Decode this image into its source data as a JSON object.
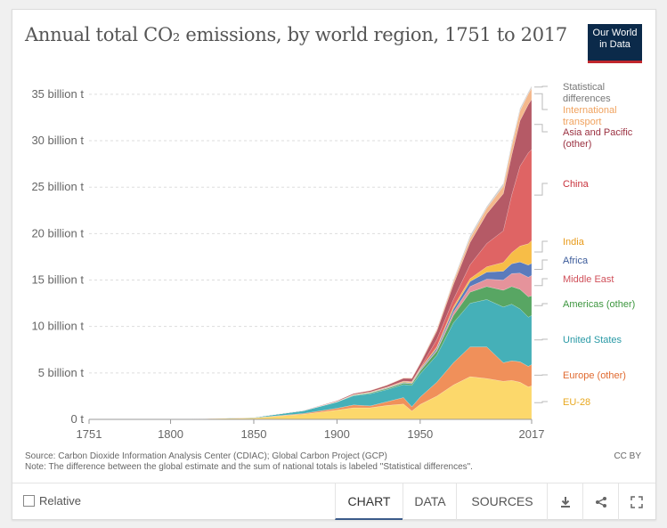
{
  "header": {
    "title": "Annual total CO₂ emissions, by world region, 1751 to 2017",
    "logo_line1": "Our World",
    "logo_line2": "in Data"
  },
  "footer": {
    "source": "Source: Carbon Dioxide Information Analysis Center (CDIAC); Global Carbon Project (GCP)",
    "note": "Note: The difference between the global estimate and the sum of national totals is labeled \"Statistical differences\".",
    "license": "CC BY",
    "relative_label": "Relative",
    "tabs": [
      "CHART",
      "DATA",
      "SOURCES"
    ],
    "icons": [
      "download-icon",
      "share-icon",
      "fullscreen-icon"
    ]
  },
  "chart_data": {
    "type": "area",
    "stacked": true,
    "title": "Annual total CO₂ emissions, by world region, 1751 to 2017",
    "x_ticks": [
      "1751",
      "1800",
      "1850",
      "1900",
      "1950",
      "2017"
    ],
    "y_ticks": [
      "0 t",
      "5 billion t",
      "10 billion t",
      "15 billion t",
      "20 billion t",
      "25 billion t",
      "30 billion t",
      "35 billion t"
    ],
    "xlim": [
      1751,
      2017
    ],
    "ylim": [
      0,
      37
    ],
    "y_unit": "billion t",
    "grid": "horizontal dashed",
    "x": [
      1751,
      1800,
      1850,
      1880,
      1900,
      1910,
      1920,
      1930,
      1940,
      1945,
      1950,
      1960,
      1970,
      1980,
      1990,
      2000,
      2005,
      2010,
      2015,
      2017
    ],
    "series": [
      {
        "name": "EU-28",
        "color": "#fcd86b",
        "label_color": "#e8a820",
        "values": [
          0.01,
          0.03,
          0.15,
          0.55,
          1.0,
          1.25,
          1.25,
          1.5,
          1.65,
          0.9,
          1.6,
          2.5,
          3.7,
          4.6,
          4.4,
          4.1,
          4.2,
          4.0,
          3.5,
          3.6
        ]
      },
      {
        "name": "Europe (other)",
        "color": "#f0905a",
        "label_color": "#e06a30",
        "values": [
          0.0,
          0.0,
          0.02,
          0.08,
          0.2,
          0.3,
          0.2,
          0.4,
          0.7,
          0.45,
          0.8,
          1.5,
          2.4,
          3.2,
          3.4,
          2.0,
          2.1,
          2.2,
          2.2,
          2.3
        ]
      },
      {
        "name": "United States",
        "color": "#45b0b8",
        "label_color": "#2a9aa6",
        "values": [
          0.0,
          0.0,
          0.05,
          0.3,
          0.66,
          1.0,
          1.3,
          1.3,
          1.4,
          2.3,
          2.5,
          2.9,
          4.3,
          4.7,
          5.1,
          6.0,
          6.1,
          5.7,
          5.3,
          5.3
        ]
      },
      {
        "name": "Americas (other)",
        "color": "#58a663",
        "label_color": "#3c963e",
        "values": [
          0.0,
          0.0,
          0.0,
          0.01,
          0.03,
          0.06,
          0.1,
          0.12,
          0.15,
          0.17,
          0.3,
          0.45,
          0.8,
          1.2,
          1.4,
          1.8,
          1.9,
          2.1,
          2.2,
          2.1
        ]
      },
      {
        "name": "Middle East",
        "color": "#e5939b",
        "label_color": "#d0505a",
        "values": [
          0.0,
          0.0,
          0.0,
          0.0,
          0.0,
          0.0,
          0.01,
          0.02,
          0.03,
          0.04,
          0.06,
          0.12,
          0.35,
          0.6,
          0.8,
          1.1,
          1.4,
          1.75,
          2.1,
          2.2
        ]
      },
      {
        "name": "Africa",
        "color": "#5a7bbc",
        "label_color": "#3b5b9a",
        "values": [
          0.0,
          0.0,
          0.0,
          0.0,
          0.01,
          0.02,
          0.03,
          0.05,
          0.06,
          0.07,
          0.1,
          0.2,
          0.35,
          0.55,
          0.75,
          0.95,
          1.05,
          1.2,
          1.3,
          1.3
        ]
      },
      {
        "name": "India",
        "color": "#f7bd47",
        "label_color": "#e89a18",
        "values": [
          0.0,
          0.0,
          0.0,
          0.01,
          0.03,
          0.04,
          0.05,
          0.06,
          0.08,
          0.09,
          0.09,
          0.14,
          0.22,
          0.3,
          0.58,
          0.95,
          1.2,
          1.7,
          2.3,
          2.45
        ]
      },
      {
        "name": "China",
        "color": "#df6464",
        "label_color": "#c8323c",
        "values": [
          0.0,
          0.0,
          0.0,
          0.0,
          0.0,
          0.0,
          0.01,
          0.02,
          0.05,
          0.06,
          0.08,
          0.78,
          0.8,
          1.5,
          2.5,
          3.4,
          6.2,
          8.6,
          9.8,
          9.8
        ]
      },
      {
        "name": "Asia and Pacific (other)",
        "color": "#b55a66",
        "label_color": "#9a3040",
        "values": [
          0.0,
          0.0,
          0.01,
          0.03,
          0.08,
          0.12,
          0.15,
          0.2,
          0.3,
          0.32,
          0.45,
          0.9,
          1.6,
          2.4,
          3.2,
          4.0,
          4.3,
          4.9,
          5.2,
          5.4
        ]
      },
      {
        "name": "International transport",
        "color": "#f4b88c",
        "label_color": "#f0a25e",
        "values": [
          0.0,
          0.0,
          0.0,
          0.0,
          0.01,
          0.02,
          0.03,
          0.05,
          0.06,
          0.07,
          0.1,
          0.2,
          0.35,
          0.45,
          0.6,
          0.8,
          0.95,
          1.05,
          1.15,
          1.2
        ]
      },
      {
        "name": "Statistical differences",
        "color": "#d0d0d0",
        "label_color": "#777777",
        "values": [
          0.0,
          0.0,
          0.0,
          0.0,
          0.0,
          0.0,
          0.0,
          0.0,
          0.0,
          0.0,
          0.05,
          0.05,
          0.15,
          0.3,
          0.2,
          0.3,
          0.35,
          0.3,
          0.2,
          0.25
        ]
      }
    ]
  }
}
